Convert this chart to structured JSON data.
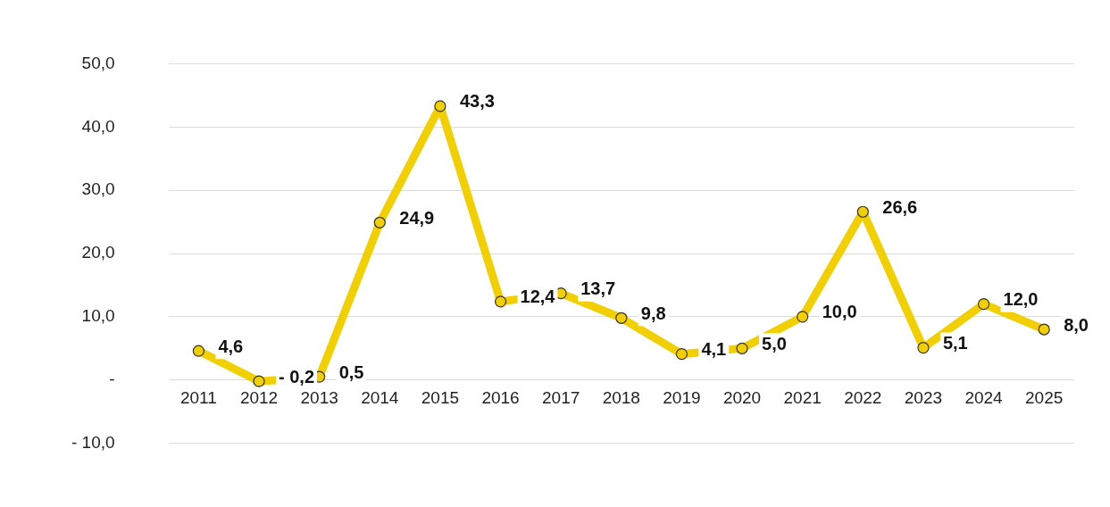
{
  "chart_data": {
    "type": "line",
    "categories": [
      "2011",
      "2012",
      "2013",
      "2014",
      "2015",
      "2016",
      "2017",
      "2018",
      "2019",
      "2020",
      "2021",
      "2022",
      "2023",
      "2024",
      "2025"
    ],
    "series": [
      {
        "color": "#f2cf00",
        "values": [
          4.6,
          -0.2,
          0.5,
          24.9,
          43.3,
          12.4,
          13.7,
          9.8,
          4.1,
          5.0,
          10.0,
          26.6,
          5.1,
          12.0,
          8.0
        ],
        "value_labels": [
          "4,6",
          "- 0,2",
          "0,5",
          "24,9",
          "43,3",
          "12,4",
          "13,7",
          "9,8",
          "4,1",
          "5,0",
          "10,0",
          "26,6",
          "5,1",
          "12,0",
          "8,0"
        ]
      }
    ],
    "ylim": [
      -10,
      50
    ],
    "yticks": [
      {
        "value": -10,
        "label": "- 10,0"
      },
      {
        "value": 0,
        "label": "-"
      },
      {
        "value": 10,
        "label": "10,0"
      },
      {
        "value": 20,
        "label": "20,0"
      },
      {
        "value": 30,
        "label": "30,0"
      },
      {
        "value": 40,
        "label": "40,0"
      },
      {
        "value": 50,
        "label": "50,0"
      }
    ],
    "grid": "y",
    "marker": "circle",
    "line_style": "solid",
    "legend": false
  }
}
